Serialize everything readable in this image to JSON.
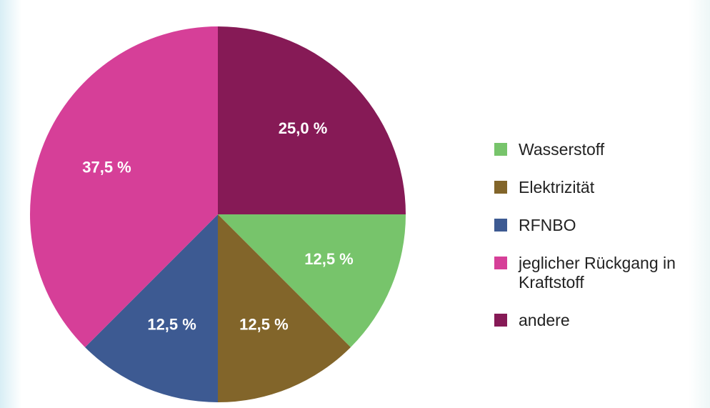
{
  "chart_data": {
    "type": "pie",
    "categories": [
      "Wasserstoff",
      "Elektrizität",
      "RFNBO",
      "jeglicher Rückgang in Kraftstoff",
      "andere"
    ],
    "values": [
      12.5,
      12.5,
      12.5,
      37.5,
      25.0
    ],
    "value_labels": [
      "12,5 %",
      "12,5 %",
      "12,5 %",
      "37,5 %",
      "25,0 %"
    ],
    "colors": [
      "#77c46b",
      "#82652a",
      "#3d5a92",
      "#d63f98",
      "#861a56"
    ],
    "legend": "right"
  }
}
